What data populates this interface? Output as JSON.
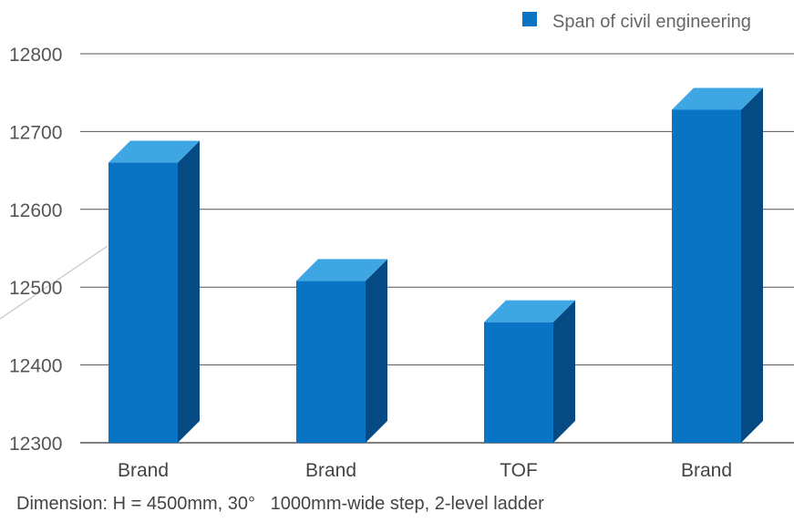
{
  "chart_data": {
    "type": "bar",
    "categories": [
      "Brand",
      "Brand",
      "TOF",
      "Brand"
    ],
    "series": [
      {
        "name": "Span of civil engineering",
        "values": [
          12660,
          12508,
          12455,
          12728
        ]
      }
    ],
    "y_ticks": [
      "12300",
      "12400",
      "12500",
      "12600",
      "12700",
      "12800"
    ],
    "ylim": [
      12300,
      12800
    ],
    "grid": true,
    "legend_position": "top-right",
    "style": "3d-bar",
    "colors": {
      "front": "#0a74c4",
      "top": "#3fa6e4",
      "side": "#054a82",
      "legend": "#0a74c4",
      "grid": "#555555"
    }
  },
  "caption": "Dimension: H = 4500mm, 30°   1000mm-wide step, 2-level ladder"
}
